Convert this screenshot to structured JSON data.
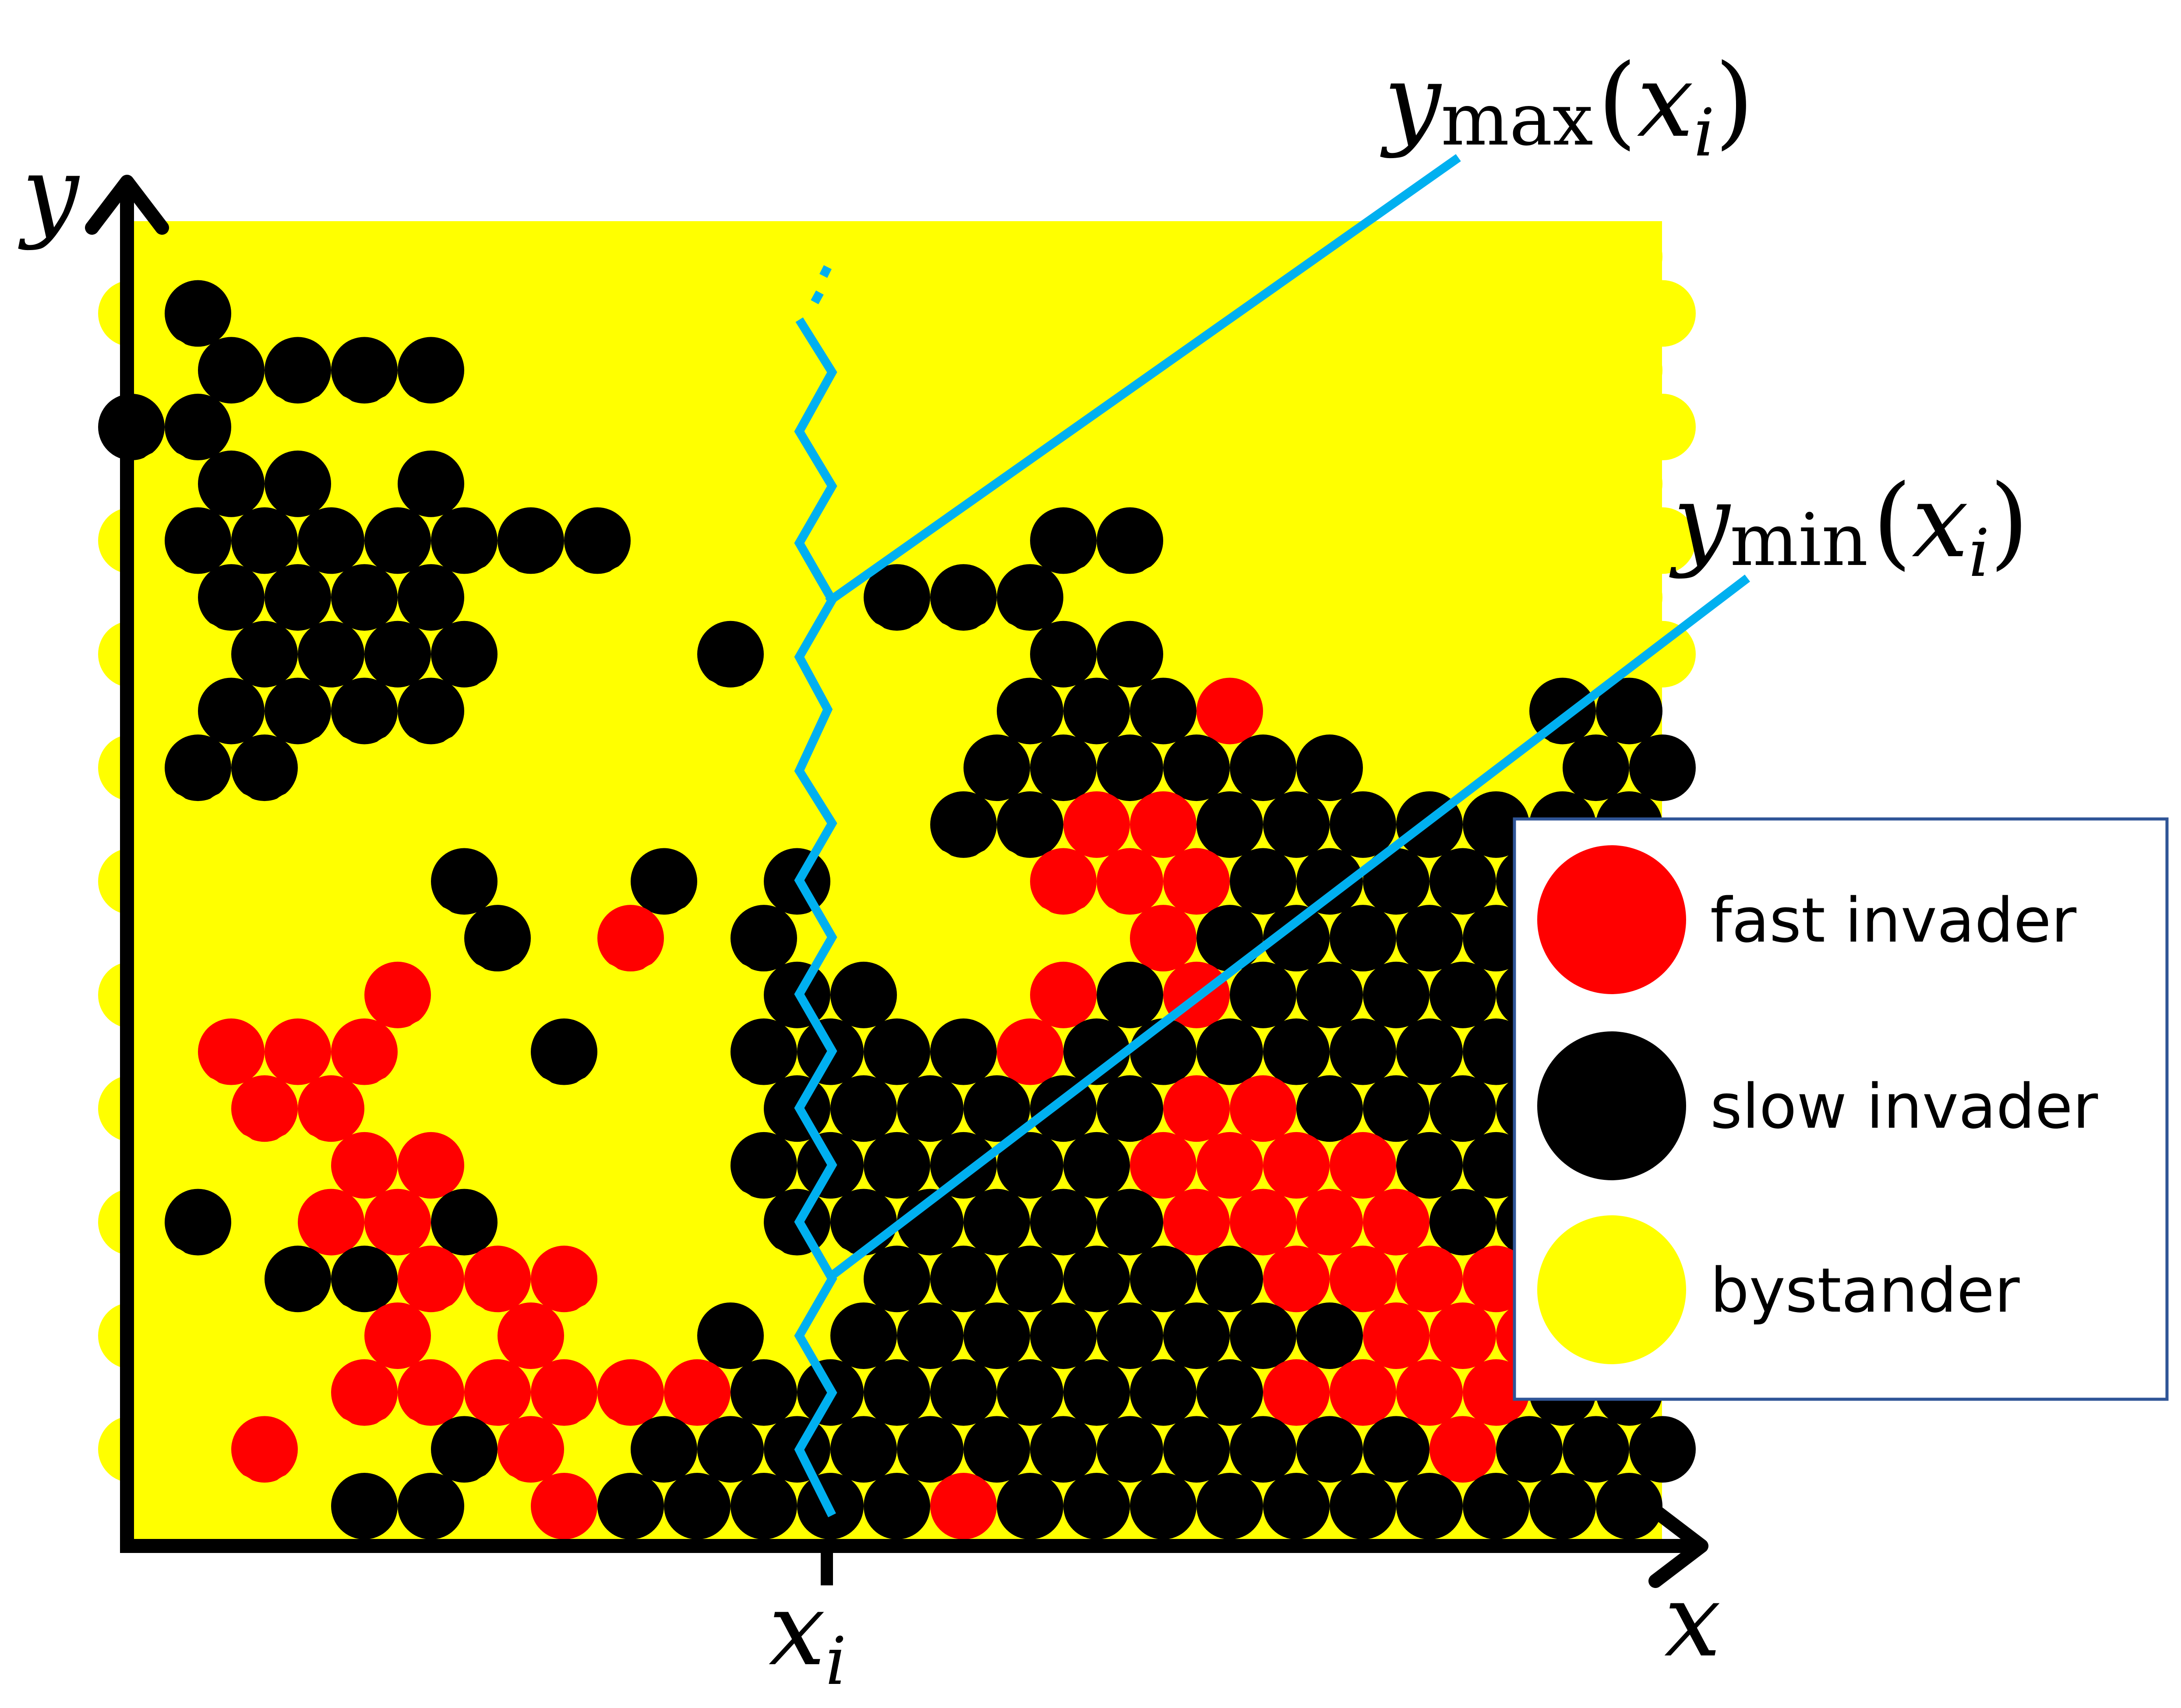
{
  "colors": {
    "fast_invader": "#ff0000",
    "slow_invader": "#000000",
    "bystander": "#ffff00",
    "boundary_line": "#00b0f0",
    "legend_border": "#2f5597",
    "axis": "#000000"
  },
  "axes": {
    "x_label": "x",
    "y_label": "y",
    "tick_label_main": "x",
    "tick_label_sub": "i"
  },
  "annotations": {
    "ymax_label": {
      "main": "y",
      "sub": "max",
      "open": "(",
      "arg": "x",
      "arg_sub": "i",
      "close": ")"
    },
    "ymin_label": {
      "main": "y",
      "sub": "min",
      "open": "(",
      "arg": "x",
      "arg_sub": "i",
      "close": ")"
    }
  },
  "legend": {
    "items": [
      {
        "label": "fast invader",
        "color_key": "fast_invader"
      },
      {
        "label": "slow invader",
        "color_key": "slow_invader"
      },
      {
        "label": "bystander",
        "color_key": "bystander"
      }
    ]
  },
  "lattice": {
    "legend_codes": "B = bystander (yellow), S = slow invader (black), F = fast invader (red); rows listed top to bottom, odd rows shifted by half a cell",
    "rows": [
      "BBBBBBBBBBBBBBBBBBBBBBB",
      "BSBBBBBBBBBBBBBBBBBBBBBB",
      "BSSSSBBBBBBBBBBBBBBBBBB",
      "SSBBBBBBBBBBBBBBBBBBBBBB",
      "BSSBSBBBBBBBBBBBBBBBBBB",
      "BSSSSSSSBBBBBBSSBBBBBBBB",
      "BSSSSBBBBBBSSSBBBBBBBBB",
      "BBSSSSBBBSBBBBSSBBBBBBBB",
      "BSSSSBBBBBBBBSSSFBBBBSSB",
      "BSSBBBBBBBBBBSSSSSSBBBSS",
      "BBBBBBBBBBBBSSFFSSSSSSSB",
      "BBBBBSBBSBSBBBFFFSSSSSSS",
      "BBBBBSBFBSBBBBBFSSSSSSSS",
      "BBBBFBBBBBSSBBFSFSSSSSSB",
      "BFFFBBSBBSSSSFSSSSSSSSSB",
      "BBFFBBBBBBSSSSSSFFSSSSSB",
      "BBBFFBBBBSSSSSSFFFFSSSSB",
      "BSBFFSBBBBSSSSSSFFFFSSSB",
      "BBSSFFFBBBBSSSSSSFFFFSSB",
      "BBBBFBFBBSBSSSSSSSSFFFFB",
      "BBBFFFFFFSSSSSSSSFFFFSSS",
      "BBFBBSFBSSSSSSSSSSSSFSSS",
      "BBBSSBFSSSSSFSSSSSSSSSSB"
    ]
  }
}
